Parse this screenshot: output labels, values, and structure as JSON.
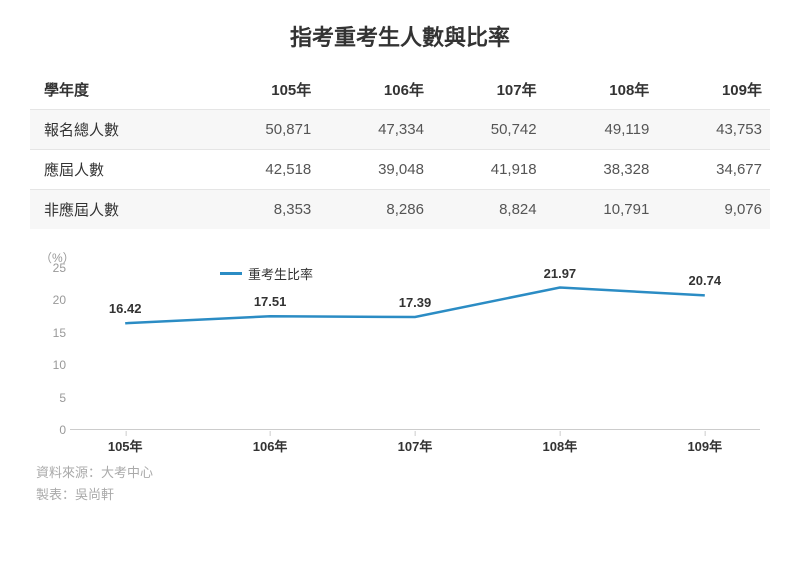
{
  "title": "指考重考生人數與比率",
  "table": {
    "col_header": "學年度",
    "years": [
      "105年",
      "106年",
      "107年",
      "108年",
      "109年"
    ],
    "rows": [
      {
        "label": "報名總人數",
        "cells": [
          "50,871",
          "47,334",
          "50,742",
          "49,119",
          "43,753"
        ]
      },
      {
        "label": "應屆人數",
        "cells": [
          "42,518",
          "39,048",
          "41,918",
          "38,328",
          "34,677"
        ]
      },
      {
        "label": "非應屆人數",
        "cells": [
          "8,353",
          "8,286",
          "8,824",
          "10,791",
          "9,076"
        ]
      }
    ]
  },
  "chart": {
    "type": "line",
    "legend_label": "重考生比率",
    "y_unit": "（%）",
    "line_color": "#2b8cc4",
    "line_width": 2.5,
    "background_color": "#ffffff",
    "axis_color": "#cccccc",
    "tick_color": "#999999",
    "ylim": [
      0,
      25
    ],
    "yticks": [
      0,
      5,
      10,
      15,
      20,
      25
    ],
    "x_categories": [
      "105年",
      "106年",
      "107年",
      "108年",
      "109年"
    ],
    "values": [
      16.42,
      17.51,
      17.39,
      21.97,
      20.74
    ],
    "value_labels": [
      "16.42",
      "17.51",
      "17.39",
      "21.97",
      "20.74"
    ],
    "label_fontsize": 13,
    "tick_fontsize": 12
  },
  "source_line1": "資料來源：大考中心",
  "source_line2": "製表：吳尚軒"
}
